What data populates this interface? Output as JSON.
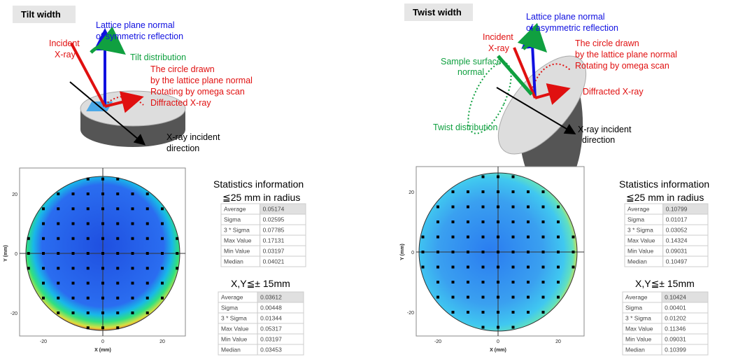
{
  "panels": [
    {
      "title": "Tilt width",
      "diagram_labels": [
        "Lattice plane normal",
        "of symmetric reflection",
        "Incident",
        "X-ray",
        "Tilt distribution",
        "The circle drawn",
        "by the lattice plane normal",
        "Rotating by omega scan",
        "Diffracted X-ray",
        "X-ray incident",
        "direction"
      ],
      "map": {
        "x_ticks": [
          -20,
          0,
          20
        ],
        "y_ticks": [
          20,
          0,
          -20
        ],
        "x_label": "X (mm)",
        "y_label": "Y (mm)"
      },
      "stats": {
        "heading": [
          "Statistics  information",
          "≦25 mm in radius"
        ],
        "rows": [
          [
            "Average",
            "0.05174"
          ],
          [
            "Sigma",
            "0.02595"
          ],
          [
            "3 * Sigma",
            "0.07785"
          ],
          [
            "Max Value",
            "0.17131"
          ],
          [
            "Min Value",
            "0.03197"
          ],
          [
            "Median",
            "0.04021"
          ]
        ]
      },
      "stats2": {
        "heading": "X,Y≦± 15mm",
        "rows": [
          [
            "Average",
            "0.03612"
          ],
          [
            "Sigma",
            "0.00448"
          ],
          [
            "3 * Sigma",
            "0.01344"
          ],
          [
            "Max Value",
            "0.05317"
          ],
          [
            "Min Value",
            "0.03197"
          ],
          [
            "Median",
            "0.03453"
          ]
        ]
      }
    },
    {
      "title": "Twist width",
      "diagram_labels": [
        "Lattice plane normal",
        "of asymmetric reflection",
        "Incident",
        "X-ray",
        "Sample surface",
        "normal",
        "The circle drawn",
        "by the lattice plane normal",
        "Rotating by omega scan",
        "Diffracted X-ray",
        "Twist distribution",
        "X-ray incident",
        "direction"
      ],
      "map": {
        "x_ticks": [
          -20,
          0,
          20
        ],
        "y_ticks": [
          20,
          0,
          -20
        ],
        "x_label": "X (mm)",
        "y_label": "Y (mm)"
      },
      "stats": {
        "heading": [
          "Statistics  information",
          "≦25 mm in radius"
        ],
        "rows": [
          [
            "Average",
            "0.10799"
          ],
          [
            "Sigma",
            "0.01017"
          ],
          [
            "3 * Sigma",
            "0.03052"
          ],
          [
            "Max Value",
            "0.14324"
          ],
          [
            "Min Value",
            "0.09031"
          ],
          [
            "Median",
            "0.10497"
          ]
        ]
      },
      "stats2": {
        "heading": "X,Y≦± 15mm",
        "rows": [
          [
            "Average",
            "0.10424"
          ],
          [
            "Sigma",
            "0.00401"
          ],
          [
            "3 * Sigma",
            "0.01202"
          ],
          [
            "Max Value",
            "0.11346"
          ],
          [
            "Min Value",
            "0.09031"
          ],
          [
            "Median",
            "0.10399"
          ]
        ]
      }
    }
  ]
}
